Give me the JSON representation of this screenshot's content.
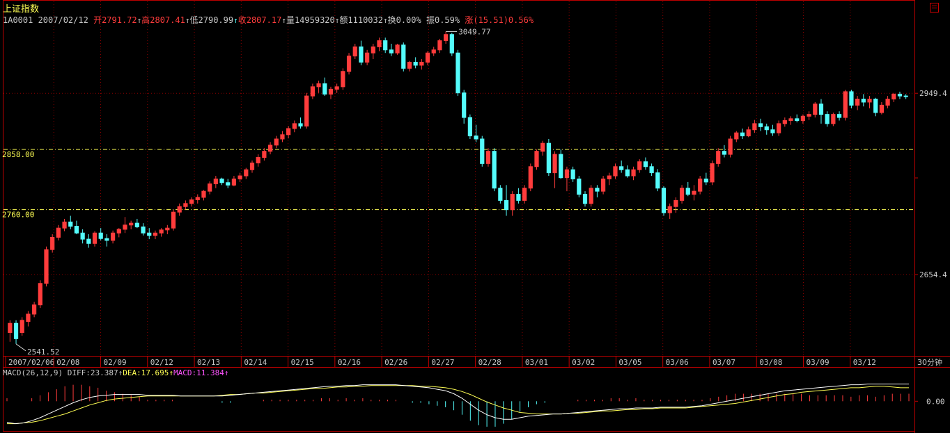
{
  "header": {
    "title": "上证指数",
    "code_date": "1A0001 2007/02/12",
    "open_label": "开",
    "open": "2791.72",
    "high_label": "高",
    "high": "2807.41",
    "low_label": "低",
    "low": "2790.99",
    "close_label": "收",
    "close": "2807.17",
    "volume_label": "量",
    "volume": "14959320",
    "amount_label": "额",
    "amount": "1110032",
    "turnover_label": "换",
    "turnover": "0.00%",
    "amplitude_label": "振",
    "amplitude": "0.59%",
    "change_label": "涨",
    "change": "(15.51)0.56%"
  },
  "macd_header": {
    "name": "MACD(26,12,9)",
    "diff": "DIFF:23.387",
    "dea": "DEA:17.695",
    "macd": "MACD:11.384"
  },
  "colors": {
    "up": "#ff3c3c",
    "down": "#54fcfc",
    "grid": "#8b0000",
    "axis": "#c00000",
    "dea": "#ffff54",
    "diff": "#ffffff",
    "guide": "#ffff54"
  },
  "chart_data": [
    {
      "type": "candlestick",
      "title": "上证指数",
      "period_label": "30分钟",
      "x_labels": [
        "2007/02/06",
        "02/08",
        "02/09",
        "02/12",
        "02/13",
        "02/14",
        "02/15",
        "02/16",
        "02/26",
        "02/27",
        "02/28",
        "03/01",
        "03/02",
        "03/05",
        "03/06",
        "03/07",
        "03/08",
        "03/09",
        "03/12"
      ],
      "y_ticks": [
        "2949.4",
        "2654.4"
      ],
      "guide_lines": [
        "2858.00",
        "2760.00"
      ],
      "annotations": {
        "high": "3049.77",
        "low": "2541.52"
      },
      "ylim": [
        2530,
        3065
      ],
      "candles": [
        [
          2560,
          2580,
          2545,
          2575
        ],
        [
          2575,
          2580,
          2541.52,
          2550
        ],
        [
          2560,
          2585,
          2555,
          2580
        ],
        [
          2578,
          2595,
          2570,
          2590
        ],
        [
          2590,
          2610,
          2585,
          2605
        ],
        [
          2605,
          2645,
          2600,
          2640
        ],
        [
          2640,
          2700,
          2635,
          2695
        ],
        [
          2695,
          2720,
          2690,
          2715
        ],
        [
          2715,
          2735,
          2710,
          2730
        ],
        [
          2730,
          2745,
          2725,
          2740
        ],
        [
          2740,
          2750,
          2728,
          2733
        ],
        [
          2733,
          2742,
          2720,
          2722
        ],
        [
          2722,
          2728,
          2705,
          2712
        ],
        [
          2712,
          2720,
          2698,
          2705
        ],
        [
          2705,
          2725,
          2700,
          2722
        ],
        [
          2722,
          2730,
          2710,
          2713
        ],
        [
          2713,
          2720,
          2700,
          2710
        ],
        [
          2710,
          2726,
          2705,
          2722
        ],
        [
          2722,
          2730,
          2715,
          2728
        ],
        [
          2728,
          2748,
          2722,
          2735
        ],
        [
          2735,
          2742,
          2728,
          2738
        ],
        [
          2738,
          2745,
          2730,
          2732
        ],
        [
          2732,
          2738,
          2718,
          2722
        ],
        [
          2722,
          2730,
          2712,
          2718
        ],
        [
          2718,
          2726,
          2712,
          2722
        ],
        [
          2722,
          2730,
          2716,
          2727
        ],
        [
          2727,
          2735,
          2720,
          2730
        ],
        [
          2730,
          2760,
          2726,
          2756
        ],
        [
          2756,
          2770,
          2750,
          2765
        ],
        [
          2765,
          2775,
          2760,
          2770
        ],
        [
          2770,
          2780,
          2765,
          2776
        ],
        [
          2776,
          2785,
          2770,
          2780
        ],
        [
          2780,
          2792,
          2775,
          2790
        ],
        [
          2790,
          2806,
          2785,
          2802
        ],
        [
          2802,
          2815,
          2795,
          2810
        ],
        [
          2810,
          2812,
          2800,
          2804
        ],
        [
          2804,
          2810,
          2795,
          2800
        ],
        [
          2800,
          2815,
          2798,
          2810
        ],
        [
          2810,
          2820,
          2805,
          2815
        ],
        [
          2815,
          2828,
          2810,
          2825
        ],
        [
          2825,
          2840,
          2820,
          2836
        ],
        [
          2836,
          2850,
          2830,
          2845
        ],
        [
          2845,
          2860,
          2840,
          2855
        ],
        [
          2855,
          2870,
          2850,
          2865
        ],
        [
          2865,
          2880,
          2860,
          2875
        ],
        [
          2875,
          2888,
          2870,
          2882
        ],
        [
          2882,
          2896,
          2876,
          2892
        ],
        [
          2892,
          2905,
          2886,
          2900
        ],
        [
          2900,
          2910,
          2892,
          2896
        ],
        [
          2896,
          2950,
          2892,
          2945
        ],
        [
          2945,
          2965,
          2940,
          2960
        ],
        [
          2960,
          2970,
          2950,
          2965
        ],
        [
          2965,
          2975,
          2945,
          2948
        ],
        [
          2948,
          2960,
          2940,
          2956
        ],
        [
          2956,
          2965,
          2950,
          2960
        ],
        [
          2960,
          2990,
          2955,
          2985
        ],
        [
          2985,
          3015,
          2980,
          3010
        ],
        [
          3010,
          3030,
          3005,
          3025
        ],
        [
          3025,
          3035,
          2995,
          3000
        ],
        [
          3000,
          3020,
          2995,
          3015
        ],
        [
          3015,
          3030,
          3005,
          3025
        ],
        [
          3025,
          3040,
          3018,
          3035
        ],
        [
          3035,
          3040,
          3015,
          3020
        ],
        [
          3020,
          3030,
          3010,
          3015
        ],
        [
          3015,
          3030,
          3012,
          3028
        ],
        [
          3028,
          3032,
          2985,
          2990
        ],
        [
          2990,
          3002,
          2985,
          3000
        ],
        [
          3000,
          3008,
          2990,
          2995
        ],
        [
          2995,
          3005,
          2988,
          3000
        ],
        [
          3000,
          3018,
          2995,
          3015
        ],
        [
          3015,
          3025,
          3010,
          3020
        ],
        [
          3020,
          3038,
          3015,
          3035
        ],
        [
          3035,
          3049.77,
          3030,
          3045
        ],
        [
          3045,
          3048,
          3010,
          3015
        ],
        [
          3015,
          3020,
          2945,
          2950
        ],
        [
          2950,
          2955,
          2900,
          2910
        ],
        [
          2910,
          2915,
          2875,
          2880
        ],
        [
          2880,
          2898,
          2870,
          2875
        ],
        [
          2875,
          2880,
          2830,
          2835
        ],
        [
          2835,
          2860,
          2830,
          2855
        ],
        [
          2855,
          2860,
          2790,
          2795
        ],
        [
          2795,
          2800,
          2770,
          2775
        ],
        [
          2775,
          2800,
          2750,
          2760
        ],
        [
          2760,
          2790,
          2750,
          2785
        ],
        [
          2785,
          2795,
          2770,
          2775
        ],
        [
          2775,
          2800,
          2770,
          2795
        ],
        [
          2795,
          2835,
          2790,
          2830
        ],
        [
          2830,
          2858,
          2825,
          2855
        ],
        [
          2855,
          2872,
          2848,
          2868
        ],
        [
          2868,
          2875,
          2815,
          2820
        ],
        [
          2820,
          2855,
          2795,
          2850
        ],
        [
          2850,
          2858,
          2810,
          2812
        ],
        [
          2812,
          2830,
          2790,
          2825
        ],
        [
          2825,
          2830,
          2805,
          2810
        ],
        [
          2810,
          2815,
          2780,
          2785
        ],
        [
          2785,
          2790,
          2765,
          2770
        ],
        [
          2770,
          2800,
          2765,
          2795
        ],
        [
          2795,
          2800,
          2780,
          2790
        ],
        [
          2790,
          2815,
          2785,
          2810
        ],
        [
          2810,
          2820,
          2800,
          2815
        ],
        [
          2815,
          2835,
          2810,
          2830
        ],
        [
          2830,
          2840,
          2820,
          2825
        ],
        [
          2825,
          2832,
          2812,
          2815
        ],
        [
          2815,
          2830,
          2808,
          2825
        ],
        [
          2825,
          2842,
          2820,
          2838
        ],
        [
          2838,
          2845,
          2825,
          2830
        ],
        [
          2830,
          2835,
          2815,
          2820
        ],
        [
          2820,
          2826,
          2790,
          2795
        ],
        [
          2795,
          2798,
          2750,
          2755
        ],
        [
          2755,
          2770,
          2745,
          2765
        ],
        [
          2765,
          2780,
          2755,
          2775
        ],
        [
          2775,
          2800,
          2770,
          2795
        ],
        [
          2795,
          2805,
          2782,
          2785
        ],
        [
          2785,
          2800,
          2775,
          2790
        ],
        [
          2790,
          2815,
          2785,
          2810
        ],
        [
          2810,
          2820,
          2800,
          2805
        ],
        [
          2805,
          2840,
          2800,
          2835
        ],
        [
          2835,
          2860,
          2830,
          2855
        ],
        [
          2855,
          2865,
          2845,
          2850
        ],
        [
          2850,
          2880,
          2845,
          2875
        ],
        [
          2875,
          2888,
          2870,
          2885
        ],
        [
          2885,
          2892,
          2875,
          2880
        ],
        [
          2880,
          2895,
          2878,
          2890
        ],
        [
          2890,
          2906,
          2885,
          2900
        ],
        [
          2900,
          2908,
          2888,
          2895
        ],
        [
          2895,
          2900,
          2882,
          2890
        ],
        [
          2890,
          2898,
          2880,
          2885
        ],
        [
          2885,
          2905,
          2880,
          2900
        ],
        [
          2900,
          2910,
          2895,
          2905
        ],
        [
          2905,
          2912,
          2898,
          2908
        ],
        [
          2908,
          2915,
          2902,
          2905
        ],
        [
          2905,
          2915,
          2900,
          2912
        ],
        [
          2912,
          2920,
          2906,
          2915
        ],
        [
          2915,
          2935,
          2910,
          2932
        ],
        [
          2932,
          2940,
          2900,
          2915
        ],
        [
          2915,
          2920,
          2895,
          2900
        ],
        [
          2900,
          2918,
          2896,
          2915
        ],
        [
          2915,
          2920,
          2905,
          2910
        ],
        [
          2910,
          2955,
          2905,
          2952
        ],
        [
          2952,
          2955,
          2925,
          2930
        ],
        [
          2930,
          2945,
          2922,
          2940
        ],
        [
          2940,
          2948,
          2928,
          2935
        ],
        [
          2935,
          2945,
          2925,
          2940
        ],
        [
          2940,
          2942,
          2912,
          2918
        ],
        [
          2918,
          2935,
          2915,
          2930
        ],
        [
          2930,
          2945,
          2925,
          2940
        ],
        [
          2940,
          2950,
          2935,
          2948
        ],
        [
          2948,
          2952,
          2940,
          2945
        ],
        [
          2945,
          2948,
          2940,
          2944
        ]
      ]
    },
    {
      "type": "bar+line",
      "title": "MACD(26,12,9)",
      "y_ticks": [
        "0.00"
      ],
      "ylim": [
        -35,
        30
      ],
      "series": [
        {
          "name": "DIFF",
          "values": [
            -28,
            -30,
            -29,
            -26,
            -22,
            -17,
            -12,
            -7,
            -2,
            2,
            5,
            7,
            8,
            9,
            9,
            9,
            9,
            8,
            8,
            8,
            8,
            7,
            7,
            7,
            7,
            7,
            7,
            8,
            9,
            10,
            11,
            12,
            13,
            14,
            15,
            16,
            17,
            18,
            19,
            20,
            20,
            21,
            21,
            22,
            22,
            22,
            22,
            22,
            21,
            20,
            19,
            18,
            16,
            14,
            10,
            4,
            -4,
            -12,
            -18,
            -22,
            -24,
            -24,
            -22,
            -20,
            -19,
            -18,
            -17,
            -17,
            -16,
            -15,
            -14,
            -13,
            -12,
            -11,
            -10,
            -10,
            -9,
            -9,
            -9,
            -8,
            -8,
            -8,
            -8,
            -7,
            -6,
            -4,
            -2,
            0,
            2,
            4,
            6,
            8,
            10,
            12,
            14,
            15,
            16,
            17,
            18,
            19,
            20,
            21,
            22,
            22,
            23,
            23,
            23,
            23,
            23,
            23
          ]
        },
        {
          "name": "DEA",
          "values": [
            -30,
            -30,
            -29,
            -28,
            -26,
            -23,
            -20,
            -17,
            -13,
            -9,
            -5,
            -2,
            1,
            3,
            4,
            5,
            6,
            7,
            7,
            7,
            7,
            7,
            7,
            7,
            7,
            7,
            8,
            9,
            9,
            10,
            11,
            11,
            12,
            13,
            14,
            15,
            16,
            17,
            17,
            18,
            19,
            19,
            20,
            20,
            21,
            21,
            21,
            21,
            21,
            21,
            20,
            20,
            19,
            18,
            16,
            13,
            9,
            4,
            -1,
            -5,
            -9,
            -12,
            -15,
            -16,
            -17,
            -17,
            -17,
            -17,
            -16,
            -16,
            -15,
            -14,
            -13,
            -13,
            -12,
            -11,
            -11,
            -10,
            -10,
            -9,
            -9,
            -9,
            -9,
            -8,
            -7,
            -6,
            -5,
            -4,
            -3,
            -1,
            1,
            3,
            5,
            7,
            9,
            10,
            12,
            13,
            14,
            15,
            16,
            17,
            18,
            18,
            19,
            20,
            20,
            19,
            18,
            18
          ]
        },
        {
          "name": "MACD",
          "values": [
            4,
            0,
            0,
            4,
            8,
            12,
            16,
            20,
            22,
            22,
            20,
            18,
            14,
            12,
            10,
            8,
            6,
            2,
            2,
            2,
            2,
            0,
            0,
            0,
            0,
            0,
            -2,
            -2,
            0,
            0,
            0,
            2,
            2,
            2,
            2,
            2,
            2,
            2,
            4,
            4,
            2,
            4,
            2,
            4,
            2,
            2,
            2,
            2,
            0,
            -2,
            -2,
            -4,
            -6,
            -8,
            -12,
            -18,
            -26,
            -32,
            -34,
            -34,
            -30,
            -24,
            -14,
            -8,
            -4,
            -2,
            0,
            0,
            0,
            2,
            2,
            2,
            2,
            4,
            4,
            2,
            4,
            2,
            2,
            2,
            2,
            2,
            2,
            2,
            2,
            4,
            6,
            8,
            10,
            10,
            10,
            10,
            10,
            10,
            10,
            10,
            10,
            8,
            8,
            8,
            8,
            8,
            6,
            8,
            8,
            6,
            8,
            10,
            10,
            10
          ]
        }
      ]
    }
  ]
}
